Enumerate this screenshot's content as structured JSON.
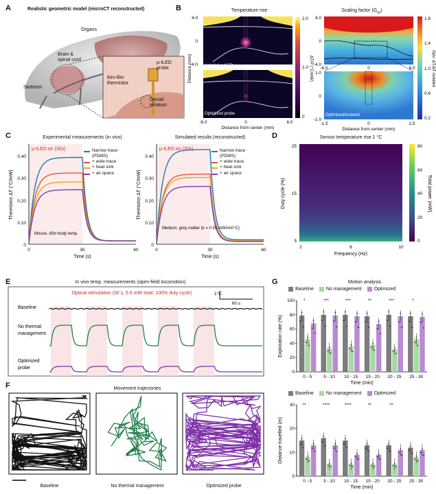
{
  "panels": {
    "A": {
      "label": "A",
      "title": "Realistic geometric model (microCT reconstructed)",
      "labels": {
        "organs": "Organs",
        "brain": "Brain &\nspinal cord",
        "skeleton": "Skeleton",
        "probe": "μ-ILED\nprobe",
        "thermistor": "thin-film\nthermistor",
        "striatum": "Dorsal\nstriatum"
      }
    },
    "B": {
      "label": "B",
      "left_title": "Temperature rise",
      "right_title": "Scaling factor (G",
      "right_title_sub": "pv",
      "right_title_end": ")",
      "top_left_tag": "Isolated μ-ILED",
      "bottom_left_tag": "Optimized probe",
      "bottom_right_tag": "Optimized/Isolated",
      "xlabel": "Distance from center (mm)",
      "ylabel": "Distance (mm)",
      "left_yticks": [
        "4.0",
        "0",
        "-4.0"
      ],
      "left_xticks": [
        "-6.0",
        "0",
        "6.0"
      ],
      "right_yticks_top": [
        "4.0",
        "0",
        "-4.0"
      ],
      "right_xticks_top": [
        "-6.0",
        "0",
        "6.0"
      ],
      "right_yticks_bottom": [
        "1.0",
        "0",
        "-1.0"
      ],
      "right_xticks_bottom": [
        "-1.5",
        "0",
        "1.5"
      ],
      "cbar_left": {
        "ticks": [
          "2.0",
          "1.0",
          "0"
        ],
        "label": "ΔT/P (°C/mW)"
      },
      "cbar_right": {
        "ticks": [
          "1.8",
          "1.4",
          "1.0",
          "0.6",
          "0.2"
        ],
        "label": "Gpv: ΔT/ΔT isolated"
      },
      "colors": {
        "inferno_dark": "#0b0626",
        "inferno_mid": "#b3307a",
        "inferno_bright": "#f5e15a",
        "jet_red": "#d7191c",
        "jet_blue": "#2b6fd6"
      }
    },
    "C": {
      "label": "C",
      "left": {
        "title": "Experimental measurements (in vivo)",
        "stim": "μ-ILED on (30s)",
        "note": "Mouse, dStr\nbody temp.",
        "xlabel": "Time (s)",
        "ylabel": "Thermistor ΔT (°C/mW)",
        "xticks": [
          "0",
          "30",
          "60"
        ],
        "yticks": [
          "0.40",
          "0.30",
          "0.20",
          "0.10",
          "0"
        ]
      },
      "right": {
        "title": "Simulated results (reconstructed)",
        "stim": "μ-ILED on (30s)",
        "note": "Medium, grey matter\n(k = 0.55 mW/mm°C)",
        "xlabel": "Time (s)",
        "ylabel": "Thermistor ΔT (°C/mW)",
        "xticks": [
          "0",
          "30",
          "60"
        ],
        "yticks": [
          "0.40",
          "0.30",
          "0.20",
          "0.10",
          "0"
        ]
      },
      "legend": [
        "Narrow trace\n(PDMS)",
        "+ wide trace",
        "+ heat sink",
        "+ air space"
      ],
      "series_colors": [
        "#1f77b4",
        "#e4572e",
        "#f0a31a",
        "#7b3fb0"
      ]
    },
    "D": {
      "label": "D",
      "title": "Sensor temperature rise 1 °C",
      "xlabel": "Frequency (Hz)",
      "ylabel": "Duty cycle (%)",
      "xticks": [
        "2",
        "6",
        "10"
      ],
      "yticks": [
        "25",
        "15",
        "5"
      ],
      "cbar_ticks": [
        "80",
        "60",
        "40",
        "20",
        "0"
      ],
      "cbar_label": "Total power (mW)"
    },
    "E": {
      "label": "E",
      "title": "In vivo temp. measurements (open-field locomotion)",
      "subtitle": "Optical stimulation  (30 s, 5.6 mW total, 100% duty cycle)",
      "scale_temp": "1°C",
      "scale_time": "60 s",
      "rows": [
        "Baseline",
        "No thermal\nmanagement",
        "Optimized\nprobe"
      ]
    },
    "F": {
      "label": "F",
      "title": "Movement trajectories",
      "captions": [
        "Baseline",
        "No thermal management",
        "Optimized probe"
      ]
    },
    "G": {
      "label": "G",
      "title": "Motion analysis",
      "legend": [
        "Baseline",
        "No management",
        "Optimized"
      ],
      "colors": [
        "#7d7d7d",
        "#a7d9a3",
        "#b98bd3"
      ]
    }
  },
  "chart_data": [
    {
      "type": "line",
      "title": "Experimental measurements (in vivo)",
      "xlabel": "Time (s)",
      "ylabel": "Thermistor ΔT (°C/mW)",
      "xlim": [
        0,
        60
      ],
      "ylim": [
        0,
        0.45
      ],
      "series": [
        {
          "name": "Narrow trace (PDMS)",
          "plateau": 0.39,
          "end": 0.015
        },
        {
          "name": "+ wide trace",
          "plateau": 0.32,
          "end": 0.015
        },
        {
          "name": "+ heat sink",
          "plateau": 0.28,
          "end": 0.015
        },
        {
          "name": "+ air space",
          "plateau": 0.245,
          "end": 0.015
        }
      ]
    },
    {
      "type": "line",
      "title": "Simulated results (reconstructed)",
      "xlabel": "Time (s)",
      "ylabel": "Thermistor ΔT (°C/mW)",
      "xlim": [
        0,
        60
      ],
      "ylim": [
        0,
        0.45
      ],
      "series": [
        {
          "name": "Narrow trace (PDMS)",
          "plateau": 0.425,
          "end": 0.02
        },
        {
          "name": "+ wide trace",
          "plateau": 0.315,
          "end": 0.015
        },
        {
          "name": "+ heat sink",
          "plateau": 0.3,
          "end": 0.015
        },
        {
          "name": "+ air space",
          "plateau": 0.26,
          "end": 0.012
        }
      ]
    },
    {
      "type": "heatmap",
      "title": "Sensor temperature rise 1 °C",
      "xlabel": "Frequency (Hz)",
      "ylabel": "Duty cycle (%)",
      "xlim": [
        2,
        10
      ],
      "ylim": [
        5,
        25
      ],
      "zlabel": "Total power (mW)",
      "zlim": [
        0,
        80
      ]
    },
    {
      "type": "bar",
      "title": "Motion analysis",
      "ylabel": "Exploration rate (%)",
      "xlabel": "Time (min)",
      "ylim": [
        0,
        100
      ],
      "categories": [
        "0 - 5",
        "5 - 10",
        "10 - 15",
        "15 - 20",
        "20 - 25",
        "25 - 30"
      ],
      "significance": [
        "*",
        "***",
        "***",
        "**",
        "***",
        "*"
      ],
      "yticks": [
        "0",
        "20",
        "40",
        "60",
        "80",
        "100"
      ],
      "series": [
        {
          "name": "Baseline",
          "values": [
            79,
            80,
            80,
            78,
            80,
            78
          ]
        },
        {
          "name": "No management",
          "values": [
            46,
            33,
            36,
            38,
            32,
            46
          ]
        },
        {
          "name": "Optimized",
          "values": [
            68,
            79,
            78,
            67,
            78,
            77
          ]
        }
      ]
    },
    {
      "type": "bar",
      "ylabel": "Distance travelled (m)",
      "xlabel": "Time (min)",
      "ylim": [
        0,
        30
      ],
      "categories": [
        "0 - 5",
        "5 - 10",
        "10 - 15",
        "15 - 20",
        "20 - 25",
        "25 - 30"
      ],
      "significance": [
        "**",
        "****",
        "****",
        "**",
        "**",
        ""
      ],
      "yticks": [
        "0",
        "10",
        "20",
        "30"
      ],
      "series": [
        {
          "name": "Baseline",
          "values": [
            15,
            16,
            15,
            13,
            13,
            12
          ]
        },
        {
          "name": "No management",
          "values": [
            8,
            5,
            5,
            5,
            5,
            8
          ]
        },
        {
          "name": "Optimized",
          "values": [
            13,
            13,
            9,
            9,
            11,
            11
          ]
        }
      ]
    }
  ]
}
